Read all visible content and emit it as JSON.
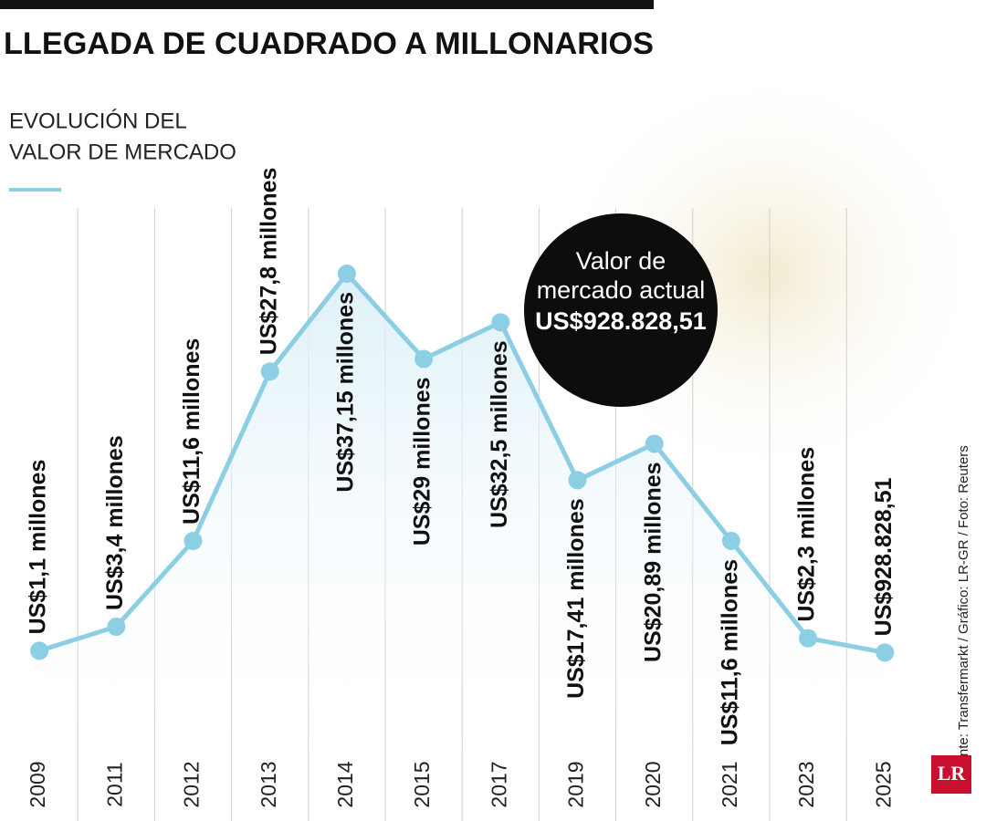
{
  "chart_data": {
    "type": "line",
    "title": "LLEGADA DE CUADRADO A MILLONARIOS",
    "subtitle": [
      "EVOLUCIÓN DEL",
      "VALOR DE MERCADO"
    ],
    "categories": [
      "2009",
      "2011",
      "2012",
      "2013",
      "2014",
      "2015",
      "2017",
      "2019",
      "2020",
      "2021",
      "2023",
      "2025"
    ],
    "values": [
      1.1,
      3.4,
      11.6,
      27.8,
      37.15,
      29,
      32.5,
      17.41,
      20.89,
      11.6,
      2.3,
      0.92882851
    ],
    "value_labels": [
      "US$1,1 millones",
      "US$3,4 millones",
      "US$11,6 millones",
      "US$27,8 millones",
      "US$37,15 millones",
      "US$29 millones",
      "US$32,5 millones",
      "US$17,41 millones",
      "US$20,89 millones",
      "US$11,6 millones",
      "US$2,3 millones",
      "US$928.828,51"
    ],
    "color": "#8ccfe4",
    "annotation": [
      "Valor de",
      "mercado actual",
      "US$928.828,51"
    ],
    "source": "Fuente: Transfermarkt / Gráfico: LR-GR / Foto: Reuters",
    "logo": "LR"
  }
}
